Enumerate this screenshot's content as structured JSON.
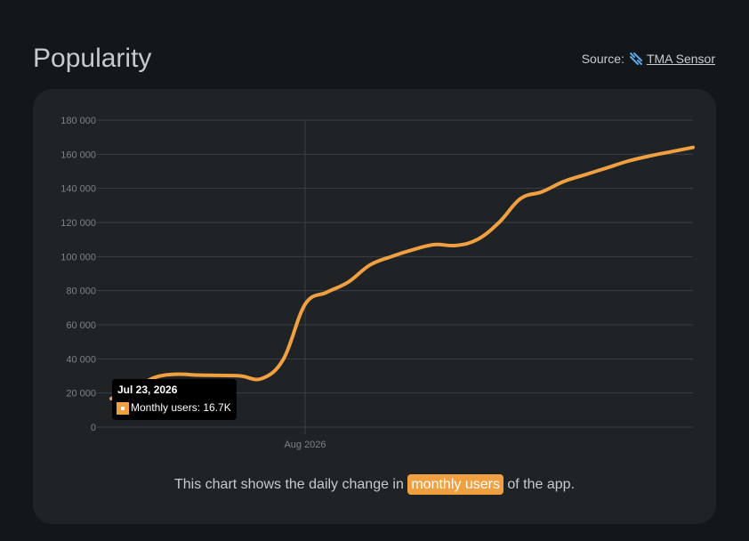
{
  "header": {
    "title": "Popularity",
    "source_prefix": "Source:",
    "source_link": "TMA Sensor",
    "source_icon": "tma-sensor-logo-icon"
  },
  "colors": {
    "background": "#131719",
    "card": "#1f2326",
    "series": "#f0a040",
    "grid": "#3a3f43",
    "tick_text": "#7d8286",
    "tooltip_bg": "#000000",
    "source_icon": "#5aa6e8"
  },
  "tooltip": {
    "date": "Jul 23, 2026",
    "text": "Monthly users: 16.7K"
  },
  "caption": {
    "before": "This chart shows the daily change in",
    "highlight": "monthly users",
    "after": "of the app."
  },
  "chart_data": {
    "type": "line",
    "title": "",
    "xlabel": "",
    "ylabel": "",
    "ylim": [
      0,
      180000
    ],
    "yticks": [
      "0",
      "20 000",
      "40 000",
      "60 000",
      "80 000",
      "100 000",
      "120 000",
      "140 000",
      "160 000",
      "180 000"
    ],
    "xticks": [
      {
        "label": "Aug 2026",
        "date": "2026-08-01"
      }
    ],
    "grid": true,
    "legend": "none",
    "series": [
      {
        "name": "Monthly users",
        "color": "#f0a040",
        "points": [
          {
            "x": "2026-07-23",
            "y": 16700
          },
          {
            "x": "2026-07-24",
            "y": 22000
          },
          {
            "x": "2026-07-25",
            "y": 29000
          },
          {
            "x": "2026-07-26",
            "y": 31000
          },
          {
            "x": "2026-07-27",
            "y": 30500
          },
          {
            "x": "2026-07-28",
            "y": 30300
          },
          {
            "x": "2026-07-29",
            "y": 30000
          },
          {
            "x": "2026-07-30",
            "y": 28500
          },
          {
            "x": "2026-07-31",
            "y": 40000
          },
          {
            "x": "2026-08-01",
            "y": 72000
          },
          {
            "x": "2026-08-02",
            "y": 79000
          },
          {
            "x": "2026-08-03",
            "y": 85000
          },
          {
            "x": "2026-08-04",
            "y": 95000
          },
          {
            "x": "2026-08-05",
            "y": 100000
          },
          {
            "x": "2026-08-06",
            "y": 104000
          },
          {
            "x": "2026-08-07",
            "y": 107000
          },
          {
            "x": "2026-08-08",
            "y": 106500
          },
          {
            "x": "2026-08-09",
            "y": 110000
          },
          {
            "x": "2026-08-10",
            "y": 120000
          },
          {
            "x": "2026-08-11",
            "y": 134000
          },
          {
            "x": "2026-08-12",
            "y": 138000
          },
          {
            "x": "2026-08-13",
            "y": 144000
          },
          {
            "x": "2026-08-14",
            "y": 148000
          },
          {
            "x": "2026-08-15",
            "y": 152000
          },
          {
            "x": "2026-08-16",
            "y": 156000
          },
          {
            "x": "2026-08-17",
            "y": 159000
          },
          {
            "x": "2026-08-18",
            "y": 161500
          },
          {
            "x": "2026-08-19",
            "y": 164000
          }
        ]
      }
    ]
  }
}
